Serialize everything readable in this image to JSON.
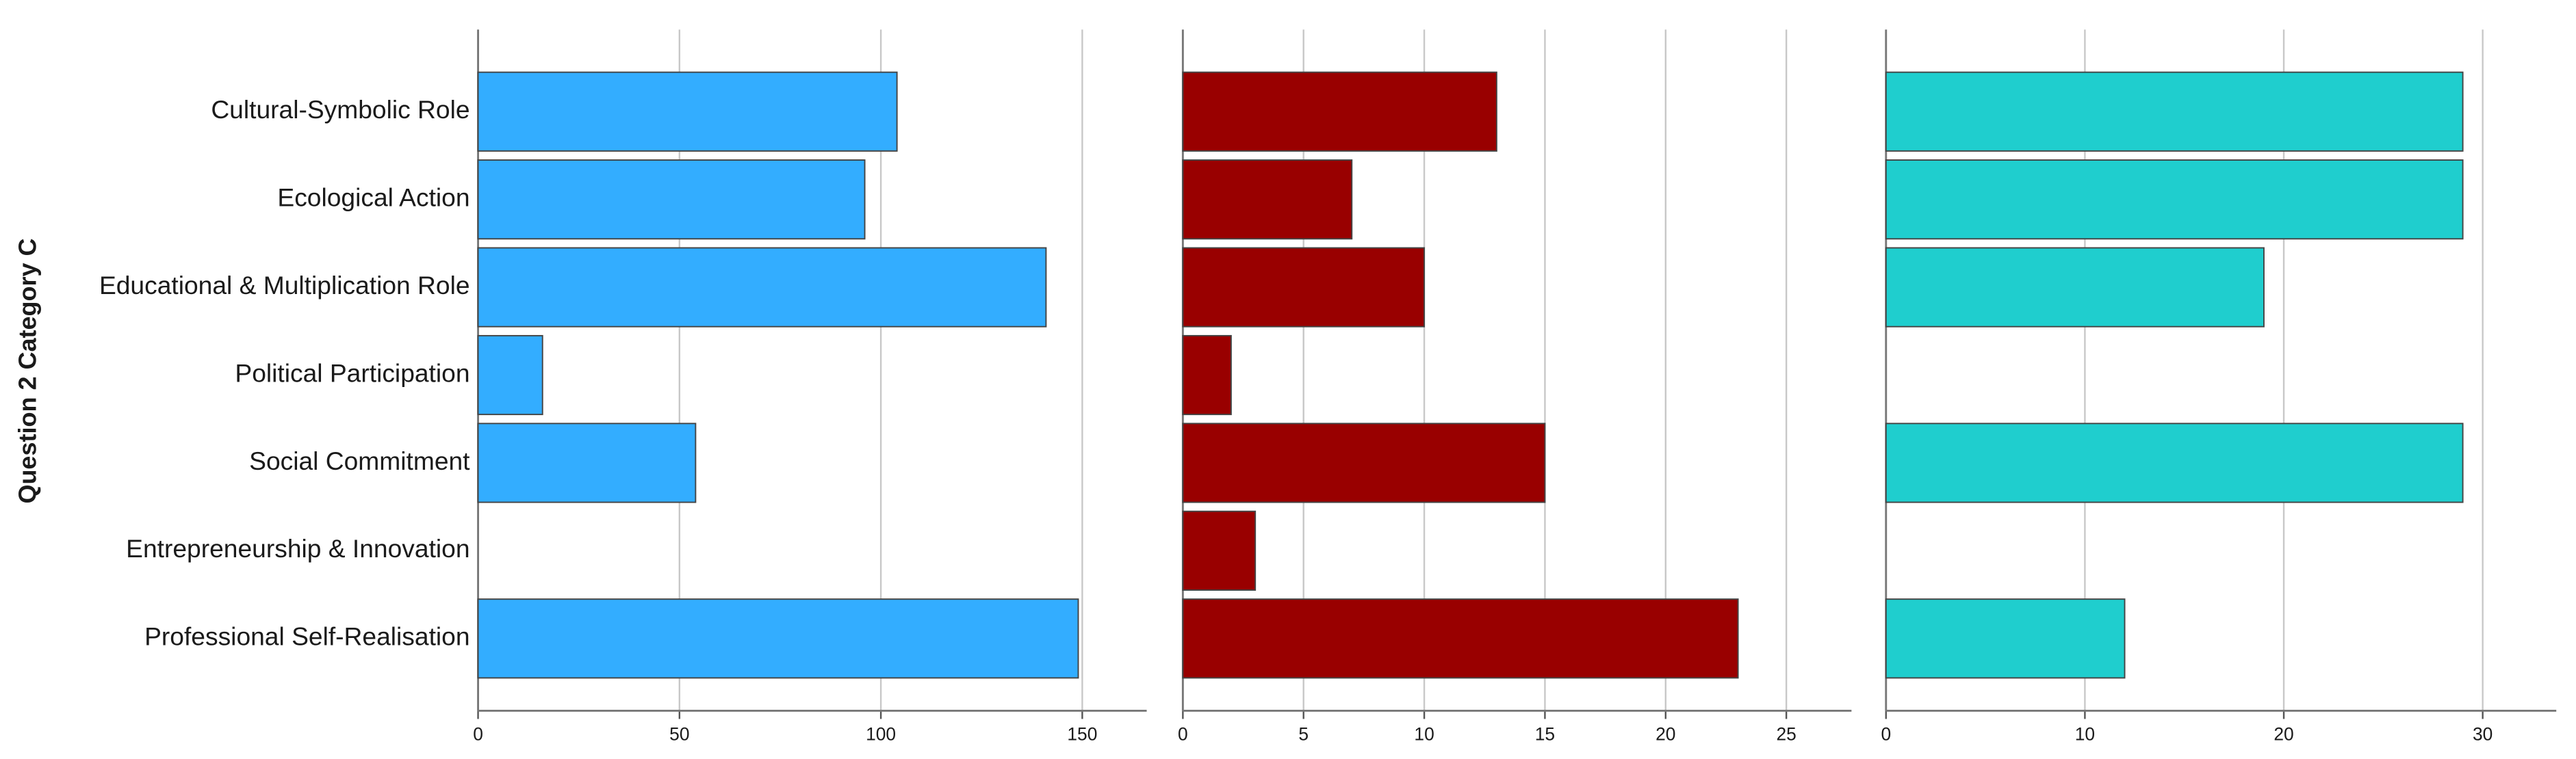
{
  "chart_data": {
    "type": "bar",
    "orientation": "horizontal",
    "ylabel": "Question 2 Category C",
    "categories": [
      "Cultural-Symbolic Role",
      "Ecological Action",
      "Educational & Multiplication Role",
      "Political Participation",
      "Social Commitment",
      "Entrepreneurship & Innovation",
      "Professional Self-Realisation"
    ],
    "grid": true,
    "panels": [
      {
        "color": "#33adff",
        "values": [
          104,
          96,
          141,
          16,
          54,
          null,
          149
        ],
        "xlim": [
          0,
          166
        ],
        "xticks": [
          0,
          50,
          100,
          150
        ]
      },
      {
        "color": "#990000",
        "values": [
          13,
          7,
          10,
          2,
          15,
          3,
          23
        ],
        "xlim": [
          0,
          27.7
        ],
        "xticks": [
          0,
          5,
          10,
          15,
          20,
          25
        ]
      },
      {
        "color": "#1fcece",
        "values": [
          29,
          29,
          19,
          null,
          29,
          null,
          12
        ],
        "xlim": [
          0,
          33.7
        ],
        "xticks": [
          0,
          10,
          20,
          30
        ]
      }
    ]
  }
}
